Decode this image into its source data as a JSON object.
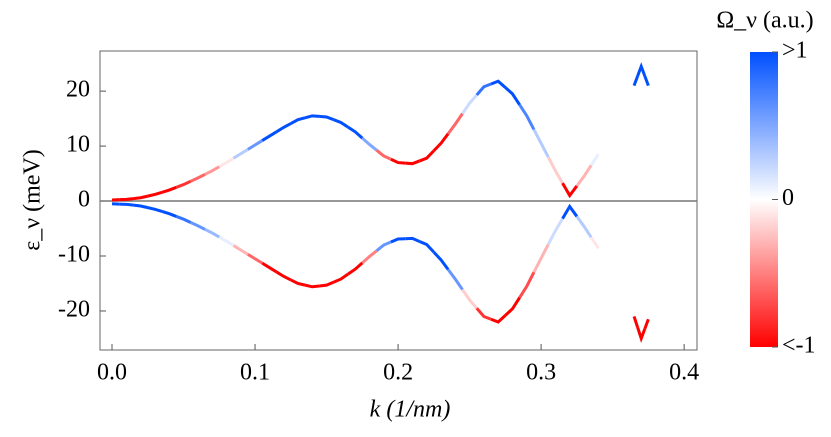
{
  "chart_data": {
    "type": "scatter",
    "x_label": "k (1/nm)",
    "y_label": "ε_ν (meV)",
    "x": [
      0,
      0.01,
      0.02,
      0.03,
      0.04,
      0.05,
      0.06,
      0.07,
      0.08,
      0.09,
      0.1,
      0.11,
      0.12,
      0.13,
      0.14,
      0.15,
      0.16,
      0.17,
      0.18,
      0.19,
      0.2,
      0.21,
      0.22,
      0.23,
      0.24,
      0.25,
      0.26,
      0.27,
      0.28,
      0.29,
      0.3,
      0.31,
      0.32,
      0.33,
      0.34,
      0.355,
      0.365,
      0.37,
      0.375
    ],
    "series": [
      {
        "values": [
          0.2,
          0.3,
          0.6,
          1.2,
          2,
          3,
          4.2,
          5.5,
          7,
          8.6,
          10.2,
          11.8,
          13.4,
          14.8,
          15.5,
          15.3,
          14.3,
          12.6,
          10.3,
          8.2,
          7,
          6.8,
          7.8,
          10.5,
          14,
          17.8,
          20.8,
          21.8,
          19.5,
          15.5,
          10.5,
          5.5,
          1,
          4.5,
          8.5,
          null,
          21,
          24.5,
          21
        ],
        "curvature": [
          -1,
          -1,
          -1,
          -1,
          -1,
          -0.8,
          -0.6,
          -0.4,
          -0.1,
          0.3,
          0.6,
          1,
          1,
          1,
          1,
          1,
          1,
          1,
          0.5,
          -0.6,
          -1,
          -1,
          -1,
          -1,
          -0.6,
          0.2,
          0.8,
          1,
          1,
          0.7,
          0.3,
          -0.2,
          -1,
          -0.3,
          0.1,
          null,
          1,
          1,
          1
        ]
      },
      {
        "values": [
          -0.5,
          -0.6,
          -0.9,
          -1.5,
          -2.3,
          -3.3,
          -4.5,
          -5.8,
          -7.3,
          -8.9,
          -10.5,
          -12.1,
          -13.7,
          -15,
          -15.6,
          -15.3,
          -14.2,
          -12.4,
          -10.1,
          -8,
          -6.9,
          -6.8,
          -7.9,
          -10.7,
          -14.2,
          -18,
          -21,
          -22,
          -19.6,
          -15.5,
          -10.4,
          -5.4,
          -1,
          -4.6,
          -8.6,
          null,
          -21,
          -25,
          -21.5
        ],
        "curvature": [
          1,
          1,
          1,
          1,
          1,
          0.8,
          0.6,
          0.4,
          0.1,
          -0.3,
          -0.6,
          -1,
          -1,
          -1,
          -1,
          -1,
          -1,
          -1,
          -0.5,
          0.6,
          1,
          1,
          1,
          1,
          0.6,
          -0.2,
          -0.8,
          -1,
          -1,
          -0.7,
          -0.3,
          0.2,
          1,
          0.3,
          -0.1,
          null,
          -1,
          -1,
          -1
        ]
      }
    ],
    "xlim": [
      -0.0084,
      0.409
    ],
    "ylim": [
      -27.1,
      27.3
    ],
    "xticks": [
      {
        "value": 0,
        "label": "0.0"
      },
      0.1,
      0.2,
      0.3,
      0.4
    ],
    "yticks": [
      20,
      10,
      0,
      -10,
      -20
    ],
    "reference_line": 0,
    "colorbar": {
      "title": "Ω_ν (a.u.)",
      "clim": [
        -1,
        1
      ],
      "positive_color": "#0050ff",
      "negative_color": "#ff0000",
      "ticks": [
        {
          "value": 1,
          "label": ">1"
        },
        0,
        {
          "value": -1,
          "label": "<-1"
        }
      ]
    }
  }
}
